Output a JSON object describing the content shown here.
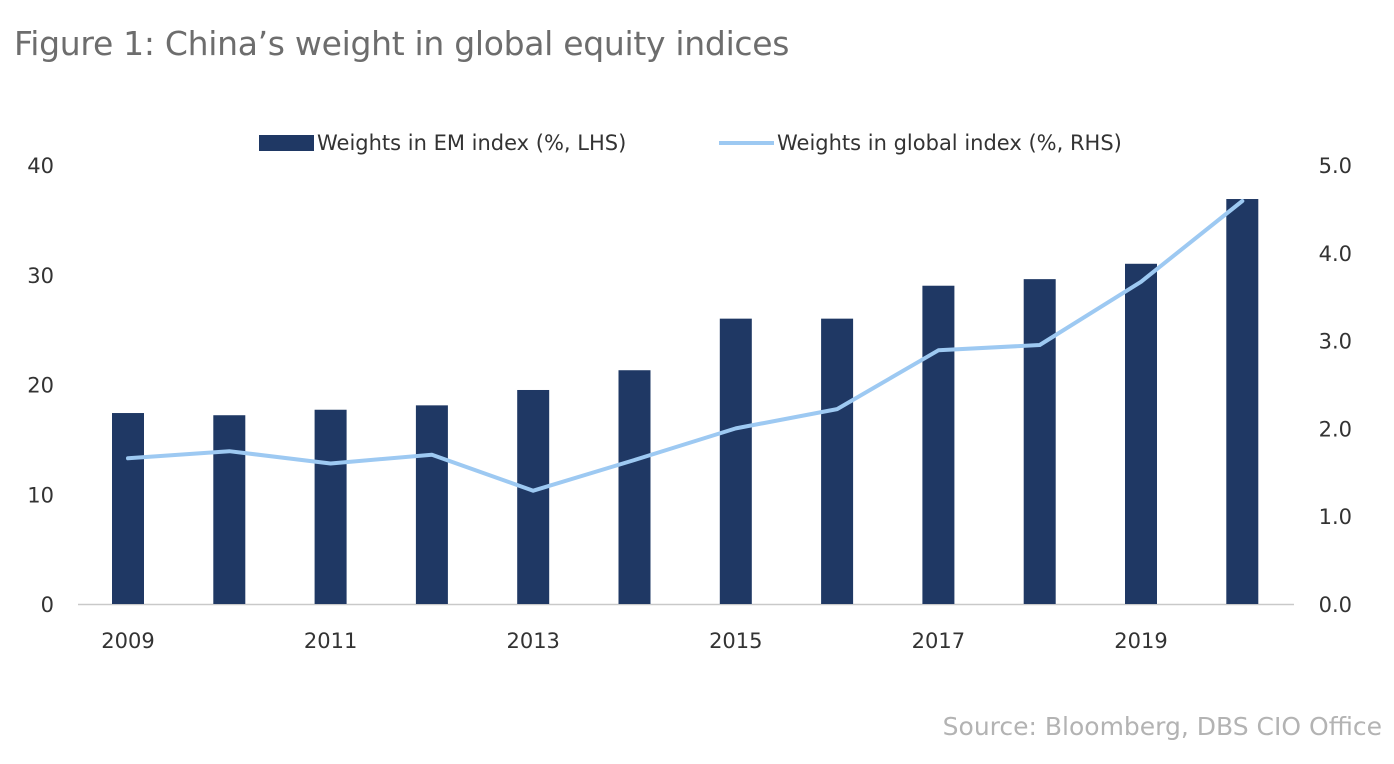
{
  "title": "Figure 1: China’s weight in global equity indices",
  "source": "Source: Bloomberg, DBS CIO Office",
  "colors": {
    "bar": "#1f3864",
    "line": "#9dc9f2",
    "axis": "#c9c9c9"
  },
  "chart_data": {
    "type": "bar",
    "x": [
      2009,
      2010,
      2011,
      2012,
      2013,
      2014,
      2015,
      2016,
      2017,
      2018,
      2019,
      2020
    ],
    "x_tick_labels": [
      "2009",
      "2011",
      "2013",
      "2015",
      "2017",
      "2019"
    ],
    "y_left_ticks": [
      "0",
      "10",
      "20",
      "30",
      "40"
    ],
    "y_right_ticks": [
      "0.0",
      "1.0",
      "2.0",
      "3.0",
      "4.0",
      "5.0"
    ],
    "ylim_left": [
      0,
      40
    ],
    "ylim_right": [
      0,
      5
    ],
    "grid": false,
    "legend_position": "top-center",
    "series": [
      {
        "name": "Weights in EM index (%, LHS)",
        "type": "bar",
        "axis": "left",
        "values": [
          17.4,
          17.2,
          17.7,
          18.1,
          19.5,
          21.3,
          26.0,
          26.0,
          29.0,
          29.6,
          31.0,
          36.9
        ]
      },
      {
        "name": "Weights in global index (%, RHS)",
        "type": "line",
        "axis": "right",
        "values": [
          1.66,
          1.74,
          1.6,
          1.7,
          1.29,
          1.64,
          2.0,
          2.22,
          2.89,
          2.95,
          3.67,
          4.59
        ]
      }
    ]
  }
}
